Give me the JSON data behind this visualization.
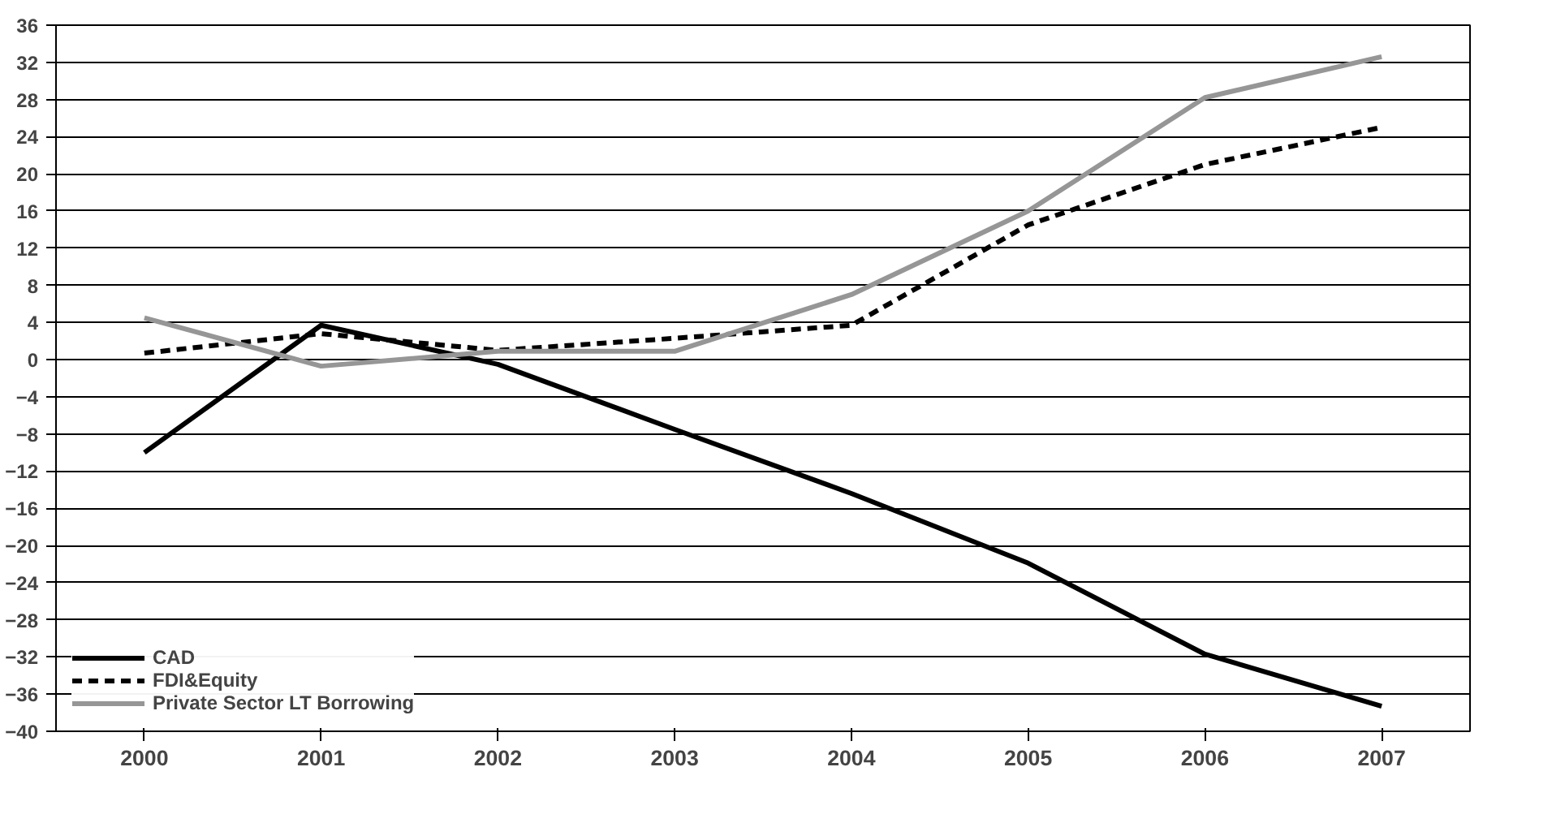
{
  "chart_data": {
    "type": "line",
    "categories": [
      "2000",
      "2001",
      "2002",
      "2003",
      "2004",
      "2005",
      "2006",
      "2007"
    ],
    "series": [
      {
        "name": "CAD",
        "color": "#000000",
        "line_style": "solid",
        "values": [
          -10,
          3.7,
          -0.5,
          -7.5,
          -14.4,
          -21.9,
          -31.7,
          -37.3
        ]
      },
      {
        "name": "FDI&Equity",
        "color": "#000000",
        "line_style": "dashed",
        "values": [
          0.7,
          2.8,
          1,
          2.3,
          3.7,
          14.5,
          21,
          25
        ]
      },
      {
        "name": "Private Sector LT Borrowing",
        "color": "#969696",
        "line_style": "solid",
        "values": [
          4.5,
          -0.7,
          0.9,
          0.9,
          7,
          16,
          28.2,
          32.6
        ]
      }
    ],
    "ylim": [
      -40,
      36
    ],
    "yticks": [
      -40,
      -36,
      -32,
      -28,
      -24,
      -20,
      -16,
      -12,
      -8,
      -4,
      0,
      4,
      8,
      12,
      16,
      20,
      24,
      28,
      32,
      36
    ],
    "grid": "y",
    "legend": "bottom left",
    "marker": "none"
  }
}
